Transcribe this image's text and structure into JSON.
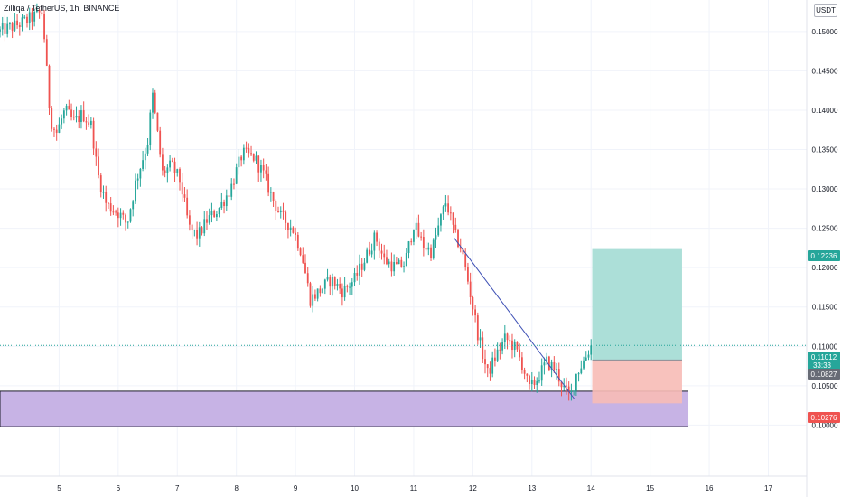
{
  "header": {
    "symbol": "Zilliqa / TetherUS",
    "interval": "1h",
    "exchange": "BINANCE"
  },
  "currency_button": "USDT",
  "colors": {
    "up": "#26a69a",
    "down": "#ef5350",
    "trendline": "#3f51b5",
    "demand_zone": "#c7b3e5",
    "target_zone": "#a8ddd6",
    "stop_zone": "#f7bbb6",
    "grid": "#f0f3fa"
  },
  "price_labels": {
    "target": "0.12236",
    "current": "0.11012",
    "countdown": "33:33",
    "entry": "0.10827",
    "stop": "0.10276"
  },
  "chart_data": {
    "type": "candlestick",
    "title": "Zilliqa / TetherUS, 1h, BINANCE",
    "x_ticks": [
      "5",
      "6",
      "7",
      "8",
      "9",
      "10",
      "11",
      "12",
      "13",
      "14",
      "15",
      "16",
      "17"
    ],
    "y_ticks": [
      "0.15000",
      "0.14500",
      "0.14000",
      "0.13500",
      "0.13000",
      "0.12500",
      "0.12000",
      "0.11500",
      "0.11000",
      "0.10500",
      "0.10000"
    ],
    "ylim": [
      0.0935,
      0.154
    ],
    "xlim": [
      4.0,
      17.65
    ],
    "price_path": [
      [
        4.0,
        0.15
      ],
      [
        4.35,
        0.151
      ],
      [
        4.6,
        0.152
      ],
      [
        4.72,
        0.1525
      ],
      [
        4.78,
        0.146
      ],
      [
        4.85,
        0.139
      ],
      [
        4.95,
        0.137
      ],
      [
        5.1,
        0.14
      ],
      [
        5.25,
        0.1385
      ],
      [
        5.4,
        0.1395
      ],
      [
        5.55,
        0.138
      ],
      [
        5.65,
        0.132
      ],
      [
        5.8,
        0.128
      ],
      [
        6.0,
        0.127
      ],
      [
        6.15,
        0.1255
      ],
      [
        6.3,
        0.131
      ],
      [
        6.5,
        0.136
      ],
      [
        6.58,
        0.142
      ],
      [
        6.75,
        0.132
      ],
      [
        6.9,
        0.133
      ],
      [
        7.05,
        0.131
      ],
      [
        7.2,
        0.125
      ],
      [
        7.35,
        0.124
      ],
      [
        7.5,
        0.126
      ],
      [
        7.7,
        0.1275
      ],
      [
        7.9,
        0.13
      ],
      [
        8.1,
        0.1345
      ],
      [
        8.3,
        0.134
      ],
      [
        8.45,
        0.132
      ],
      [
        8.6,
        0.129
      ],
      [
        8.75,
        0.1265
      ],
      [
        8.95,
        0.125
      ],
      [
        9.1,
        0.122
      ],
      [
        9.25,
        0.116
      ],
      [
        9.4,
        0.117
      ],
      [
        9.6,
        0.1185
      ],
      [
        9.8,
        0.117
      ],
      [
        10.0,
        0.1185
      ],
      [
        10.2,
        0.1215
      ],
      [
        10.35,
        0.124
      ],
      [
        10.5,
        0.121
      ],
      [
        10.7,
        0.12
      ],
      [
        10.85,
        0.1205
      ],
      [
        11.0,
        0.1255
      ],
      [
        11.15,
        0.123
      ],
      [
        11.3,
        0.122
      ],
      [
        11.45,
        0.126
      ],
      [
        11.55,
        0.1285
      ],
      [
        11.7,
        0.124
      ],
      [
        11.8,
        0.1225
      ],
      [
        11.9,
        0.119
      ],
      [
        12.0,
        0.115
      ],
      [
        12.1,
        0.111
      ],
      [
        12.25,
        0.1065
      ],
      [
        12.4,
        0.109
      ],
      [
        12.55,
        0.111
      ],
      [
        12.7,
        0.11
      ],
      [
        12.85,
        0.1075
      ],
      [
        12.95,
        0.1045
      ],
      [
        13.1,
        0.106
      ],
      [
        13.25,
        0.108
      ],
      [
        13.4,
        0.107
      ],
      [
        13.55,
        0.1045
      ],
      [
        13.65,
        0.1035
      ],
      [
        13.75,
        0.1065
      ],
      [
        13.9,
        0.1085
      ],
      [
        14.0,
        0.1101
      ]
    ],
    "demand_zone": {
      "x": [
        4.0,
        15.64
      ],
      "y": [
        0.0998,
        0.1043
      ]
    },
    "trendline": {
      "x": [
        11.68,
        13.72
      ],
      "y": [
        0.1238,
        0.1033
      ]
    },
    "position": {
      "x": [
        14.02,
        15.54
      ],
      "entry": 0.10827,
      "target": 0.12236,
      "stop": 0.10276
    }
  }
}
